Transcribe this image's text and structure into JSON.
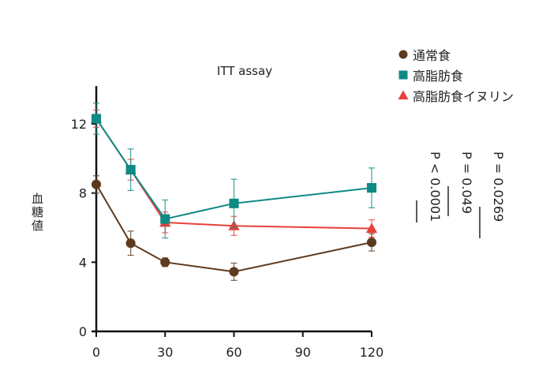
{
  "chart_data": {
    "type": "line",
    "title": "ITT assay",
    "xlabel": "",
    "ylabel": "血糖値",
    "x": [
      0,
      15,
      30,
      60,
      120
    ],
    "xlim": [
      0,
      120
    ],
    "ylim": [
      0,
      14
    ],
    "xticks": [
      0,
      30,
      60,
      90,
      120
    ],
    "yticks": [
      0,
      4,
      8,
      12
    ],
    "grid": false,
    "legend_position": "top-right",
    "series": [
      {
        "name": "通常食",
        "marker": "circle",
        "color": "#5c3a1e",
        "values": [
          8.5,
          5.1,
          4.0,
          3.45,
          5.15
        ],
        "errors": [
          0.5,
          0.7,
          0.25,
          0.5,
          0.5
        ]
      },
      {
        "name": "高脂肪食",
        "marker": "square",
        "color": "#0f8a84",
        "values": [
          12.3,
          9.35,
          6.5,
          7.4,
          8.3
        ],
        "errors": [
          0.9,
          1.2,
          1.1,
          1.4,
          1.15
        ]
      },
      {
        "name": "高脂肪食イヌリン",
        "marker": "triangle",
        "color": "#e8403a",
        "values": [
          12.3,
          9.35,
          6.3,
          6.1,
          5.95
        ],
        "errors": [
          0.5,
          0.6,
          0.6,
          0.55,
          0.5
        ]
      }
    ],
    "annotations": [
      "P = 0.0269",
      "P = 0.049",
      "P < 0.0001"
    ]
  }
}
